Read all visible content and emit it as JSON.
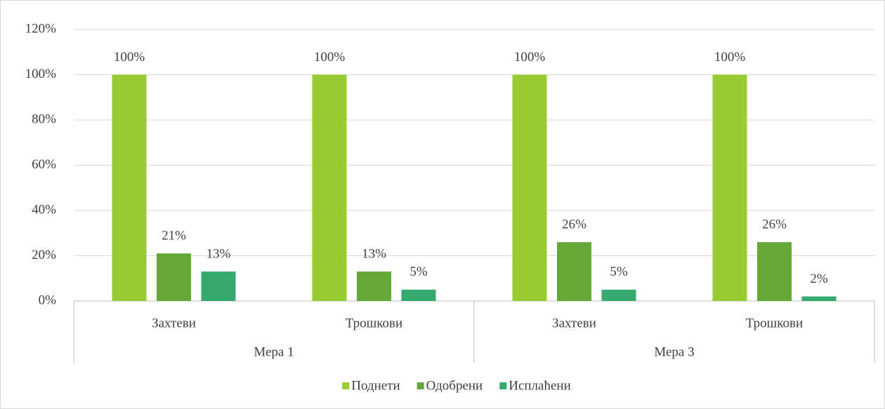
{
  "chart_data": {
    "type": "bar",
    "categories": [
      "Захтеви",
      "Трошкови",
      "Захтеви",
      "Трошкови"
    ],
    "groups": [
      "Мера 1",
      "Мера 3"
    ],
    "series": [
      {
        "name": "Поднети",
        "color": "#99cc33",
        "values": [
          100,
          100,
          100,
          100
        ],
        "value_labels": [
          "100%",
          "100%",
          "100%",
          "100%"
        ]
      },
      {
        "name": "Одобрени",
        "color": "#66a838",
        "values": [
          21,
          13,
          26,
          26
        ],
        "value_labels": [
          "21%",
          "13%",
          "26%",
          "26%"
        ]
      },
      {
        "name": "Исплаћени",
        "color": "#36a96e",
        "values": [
          13,
          5,
          5,
          2
        ],
        "value_labels": [
          "13%",
          "5%",
          "5%",
          "2%"
        ]
      }
    ],
    "ylim": [
      0,
      120
    ],
    "yticks": [
      {
        "value": 0,
        "label": "0%"
      },
      {
        "value": 20,
        "label": "20%"
      },
      {
        "value": 40,
        "label": "40%"
      },
      {
        "value": 60,
        "label": "60%"
      },
      {
        "value": 80,
        "label": "80%"
      },
      {
        "value": 100,
        "label": "100%"
      },
      {
        "value": 120,
        "label": "120%"
      }
    ],
    "grid": true,
    "legend": "bottom"
  }
}
